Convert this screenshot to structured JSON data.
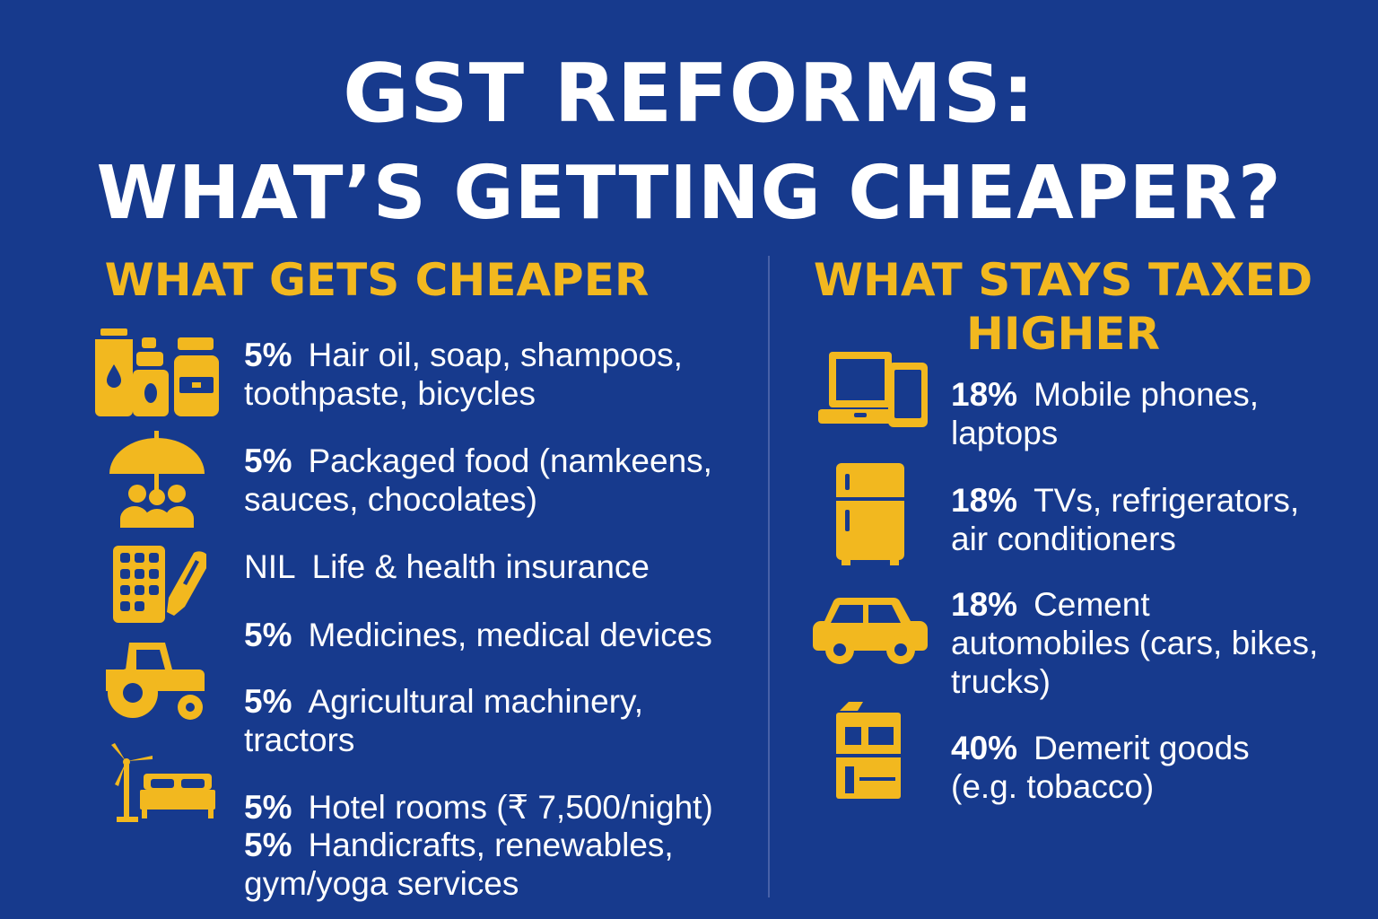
{
  "title": {
    "line1": "GST REFORMS:",
    "line2": "WHAT’S GETTING CHEAPER?"
  },
  "left": {
    "heading": "WHAT GETS CHEAPER",
    "items": [
      {
        "rate": "5%",
        "line1": "Hair oil, soap, shampoos,",
        "line2": "toothpaste, bicycles",
        "icon": "toiletries-icon"
      },
      {
        "rate": "5%",
        "line1": "Packaged food (namkeens,",
        "line2": "sauces, chocolates)",
        "icon": "umbrella-family-icon"
      },
      {
        "rate": "NIL",
        "line1": "Life & health insurance",
        "line2": "",
        "icon": "medicine-pills-icon"
      },
      {
        "rate": "5%",
        "line1": "Medicines, medical devices",
        "line2": "",
        "icon": ""
      },
      {
        "rate": "5%",
        "line1": "Agricultural machinery,",
        "line2": "tractors",
        "icon": "tractor-icon"
      },
      {
        "rate": "5%",
        "line1": "Hotel rooms (₹ 7,500/night)",
        "line2": "",
        "icon": "windmill-bed-icon"
      },
      {
        "rate": "5%",
        "line1": "Handicrafts, renewables,",
        "line2": "gym/yoga services",
        "icon": ""
      }
    ]
  },
  "right": {
    "heading_line1": "WHAT STAYS TAXED",
    "heading_line2": "HIGHER",
    "items": [
      {
        "rate": "18%",
        "line1": "Mobile phones,",
        "line2": "laptops",
        "line3": "",
        "icon": "laptop-phone-icon"
      },
      {
        "rate": "18%",
        "line1": "TVs, refrigerators,",
        "line2": "air conditioners",
        "line3": "",
        "icon": "refrigerator-icon"
      },
      {
        "rate": "18%",
        "line1": "Cement",
        "line2": "automobiles (cars, bikes,",
        "line3": "trucks)",
        "icon": "car-icon"
      },
      {
        "rate": "40%",
        "line1": "Demerit goods",
        "line2": "(e.g. tobacco)",
        "line3": "",
        "icon": "tobacco-pack-icon"
      }
    ]
  },
  "colors": {
    "background": "#173a8d",
    "accent": "#f2b81f",
    "text": "#ffffff"
  }
}
